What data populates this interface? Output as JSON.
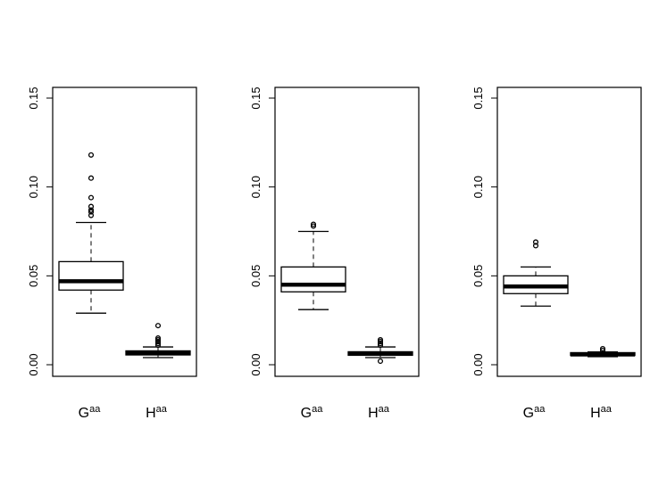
{
  "chart_data": [
    {
      "type": "boxplot",
      "ylim": [
        0,
        0.16
      ],
      "yticks": [
        "0.00",
        "0.05",
        "0.10",
        "0.15"
      ],
      "categories": [
        {
          "base": "G",
          "sup": "aa"
        },
        {
          "base": "H",
          "sup": "aa"
        }
      ],
      "boxes": [
        {
          "whisker_low": 0.029,
          "q1": 0.042,
          "median": 0.047,
          "q3": 0.058,
          "whisker_high": 0.08,
          "outliers": [
            0.084,
            0.086,
            0.087,
            0.089,
            0.094,
            0.105,
            0.118
          ]
        },
        {
          "whisker_low": 0.004,
          "q1": 0.0055,
          "median": 0.0065,
          "q3": 0.0078,
          "whisker_high": 0.01,
          "outliers": [
            0.011,
            0.012,
            0.013,
            0.014,
            0.015,
            0.022
          ]
        }
      ]
    },
    {
      "type": "boxplot",
      "ylim": [
        0,
        0.16
      ],
      "yticks": [
        "0.00",
        "0.05",
        "0.10",
        "0.15"
      ],
      "categories": [
        {
          "base": "G",
          "sup": "aa"
        },
        {
          "base": "H",
          "sup": "aa"
        }
      ],
      "boxes": [
        {
          "whisker_low": 0.031,
          "q1": 0.041,
          "median": 0.045,
          "q3": 0.055,
          "whisker_high": 0.075,
          "outliers": [
            0.078,
            0.079
          ]
        },
        {
          "whisker_low": 0.004,
          "q1": 0.0053,
          "median": 0.0062,
          "q3": 0.0073,
          "whisker_high": 0.01,
          "outliers": [
            0.002,
            0.011,
            0.012,
            0.013,
            0.014
          ]
        }
      ]
    },
    {
      "type": "boxplot",
      "ylim": [
        0,
        0.16
      ],
      "yticks": [
        "0.00",
        "0.05",
        "0.10",
        "0.15"
      ],
      "categories": [
        {
          "base": "G",
          "sup": "aa"
        },
        {
          "base": "H",
          "sup": "aa"
        }
      ],
      "boxes": [
        {
          "whisker_low": 0.033,
          "q1": 0.04,
          "median": 0.044,
          "q3": 0.05,
          "whisker_high": 0.055,
          "outliers": [
            0.067,
            0.069
          ]
        },
        {
          "whisker_low": 0.0045,
          "q1": 0.0052,
          "median": 0.0058,
          "q3": 0.0068,
          "whisker_high": 0.0072,
          "outliers": [
            0.008,
            0.009
          ]
        }
      ]
    }
  ]
}
